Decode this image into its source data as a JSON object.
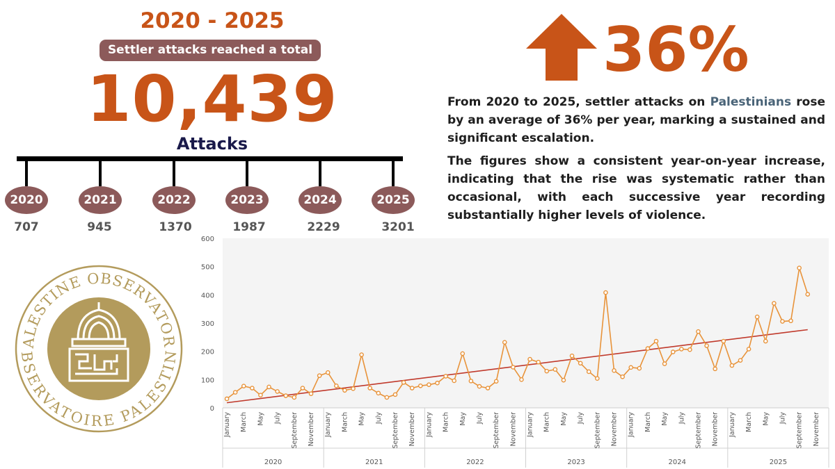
{
  "header": {
    "years_range": "2020 - 2025",
    "subtitle": "Settler attacks reached a total of",
    "total": "10,439",
    "unit": "Attacks"
  },
  "timeline": [
    {
      "year": "2020",
      "value": "707"
    },
    {
      "year": "2021",
      "value": "945"
    },
    {
      "year": "2022",
      "value": "1370"
    },
    {
      "year": "2023",
      "value": "1987"
    },
    {
      "year": "2024",
      "value": "2229"
    },
    {
      "year": "2025",
      "value": "3201"
    }
  ],
  "stat": {
    "percent": "36%",
    "arrow_icon": "up-arrow-icon",
    "paragraph1_pre": "From 2020 to 2025, settler attacks on ",
    "paragraph1_hl": "Palestinians",
    "paragraph1_post": " rose by an average of 36% per year, marking a sustained and significant escalation.",
    "paragraph2": "The figures show a consistent year-on-year increase, indicating that the rise was systematic rather than occasional, with each successive year recording substantially higher levels of violence."
  },
  "logo": {
    "top_text": "PALESTINE OBSERVATORY",
    "bottom_text": "OBSERVATOIRE PALESTINE",
    "emblem_icon": "dome-emblem-icon"
  },
  "colors": {
    "accent": "#c85418",
    "pill": "#8c5a5a",
    "series": "#e8933a",
    "trend": "#c0392b",
    "logo": "#b39b5c"
  },
  "chart_data": {
    "type": "line",
    "title": "",
    "xlabel": "",
    "ylabel": "",
    "ylim": [
      0,
      600
    ],
    "yticks": [
      0,
      100,
      200,
      300,
      400,
      500,
      600
    ],
    "years": [
      "2020",
      "2021",
      "2022",
      "2023",
      "2024",
      "2025"
    ],
    "tick_labels": [
      "January",
      "March",
      "May",
      "July",
      "September",
      "November"
    ],
    "months_per_year": 12,
    "grid": false,
    "trendline": true,
    "series": [
      {
        "values": [
          32,
          55,
          77,
          70,
          45,
          74,
          58,
          43,
          37,
          70,
          50,
          114,
          125,
          78,
          62,
          68,
          188,
          70,
          52,
          37,
          47,
          90,
          70,
          78,
          82,
          88,
          112,
          96,
          192,
          95,
          76,
          70,
          94,
          232,
          144,
          100,
          172,
          162,
          130,
          136,
          98,
          184,
          158,
          128,
          104,
          408,
          132,
          110,
          143,
          140,
          210,
          236,
          156,
          198,
          208,
          206,
          270,
          220,
          138,
          236,
          150,
          168,
          208,
          322,
          236,
          370,
          306,
          308,
          495,
          402
        ]
      }
    ]
  }
}
